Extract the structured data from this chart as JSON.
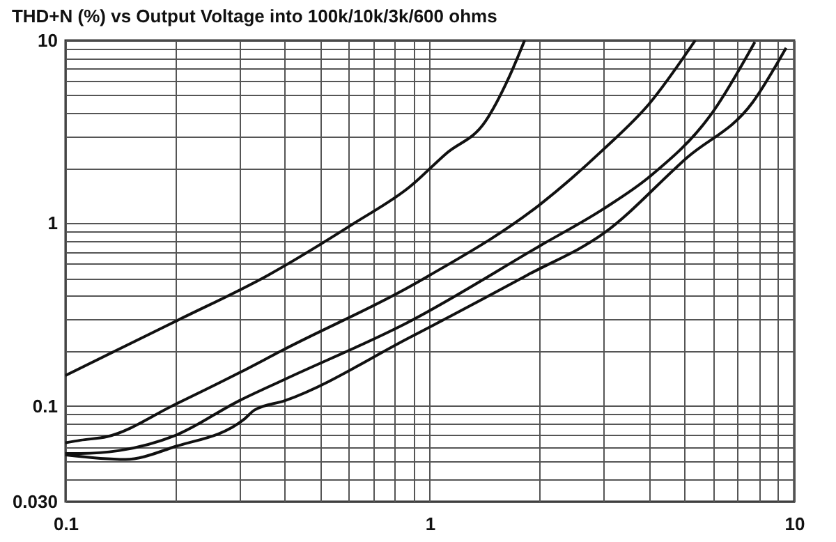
{
  "chart_data": {
    "type": "line",
    "title": "THD+N (%) vs Output Voltage into 100k/10k/3k/600 ohms",
    "log": "xy",
    "grid": true,
    "legend": false,
    "marker": "none",
    "line_style": "solid",
    "xlim": [
      0.1,
      10
    ],
    "ylim": [
      0.03,
      10
    ],
    "xticks": [
      0.1,
      {
        "value": 0.2,
        "label": null
      },
      {
        "value": 0.3,
        "label": null
      },
      {
        "value": 0.4,
        "label": null
      },
      {
        "value": 0.5,
        "label": null
      },
      {
        "value": 0.6,
        "label": null
      },
      {
        "value": 0.7,
        "label": null
      },
      {
        "value": 0.8,
        "label": null
      },
      {
        "value": 0.9,
        "label": null
      },
      1,
      {
        "value": 2,
        "label": null
      },
      {
        "value": 3,
        "label": null
      },
      {
        "value": 4,
        "label": null
      },
      {
        "value": 5,
        "label": null
      },
      {
        "value": 6,
        "label": null
      },
      {
        "value": 7,
        "label": null
      },
      {
        "value": 8,
        "label": null
      },
      {
        "value": 9,
        "label": null
      },
      10
    ],
    "yticks": [
      {
        "value": 0.03,
        "label": "0.030"
      },
      {
        "value": 0.04,
        "label": null
      },
      {
        "value": 0.05,
        "label": null
      },
      {
        "value": 0.06,
        "label": null
      },
      {
        "value": 0.07,
        "label": null
      },
      {
        "value": 0.08,
        "label": null
      },
      {
        "value": 0.09,
        "label": null
      },
      0.1,
      {
        "value": 0.2,
        "label": null
      },
      {
        "value": 0.3,
        "label": null
      },
      {
        "value": 0.4,
        "label": null
      },
      {
        "value": 0.5,
        "label": null
      },
      {
        "value": 0.6,
        "label": null
      },
      {
        "value": 0.7,
        "label": null
      },
      {
        "value": 0.8,
        "label": null
      },
      {
        "value": 0.9,
        "label": null
      },
      1,
      {
        "value": 2,
        "label": null
      },
      {
        "value": 3,
        "label": null
      },
      {
        "value": 4,
        "label": null
      },
      {
        "value": 5,
        "label": null
      },
      {
        "value": 6,
        "label": null
      },
      {
        "value": 7,
        "label": null
      },
      {
        "value": 8,
        "label": null
      },
      {
        "value": 9,
        "label": null
      },
      10
    ],
    "series": [
      {
        "color": "#111111",
        "x": [
          0.1,
          0.2,
          0.36,
          0.62,
          0.88,
          1.11,
          1.42,
          1.65,
          1.82
        ],
        "values": [
          0.147,
          0.29,
          0.52,
          1.0,
          1.58,
          2.41,
          3.6,
          6.3,
          10
        ]
      },
      {
        "color": "#111111",
        "x": [
          0.1,
          0.11,
          0.13,
          0.2,
          0.3,
          0.4,
          0.88,
          1.0,
          2.0,
          3.0,
          4.0,
          5.35
        ],
        "values": [
          0.063,
          0.065,
          0.068,
          0.102,
          0.152,
          0.205,
          0.45,
          0.52,
          1.26,
          2.54,
          4.5,
          10
        ]
      },
      {
        "color": "#111111",
        "x": [
          0.1,
          0.11,
          0.14,
          0.2,
          0.3,
          0.4,
          0.88,
          2.0,
          3.0,
          4.0,
          6.0,
          7.8
        ],
        "values": [
          0.055,
          0.055,
          0.057,
          0.069,
          0.107,
          0.14,
          0.29,
          0.75,
          1.2,
          1.79,
          4.1,
          9.8
        ]
      },
      {
        "color": "#111111",
        "x": [
          0.1,
          0.146,
          0.2,
          0.31,
          0.33,
          0.4,
          0.88,
          1.85,
          3.0,
          5.1,
          7.7,
          9.5
        ],
        "values": [
          0.054,
          0.051,
          0.06,
          0.085,
          0.095,
          0.107,
          0.237,
          0.52,
          0.88,
          2.3,
          4.6,
          9.1
        ]
      }
    ]
  }
}
